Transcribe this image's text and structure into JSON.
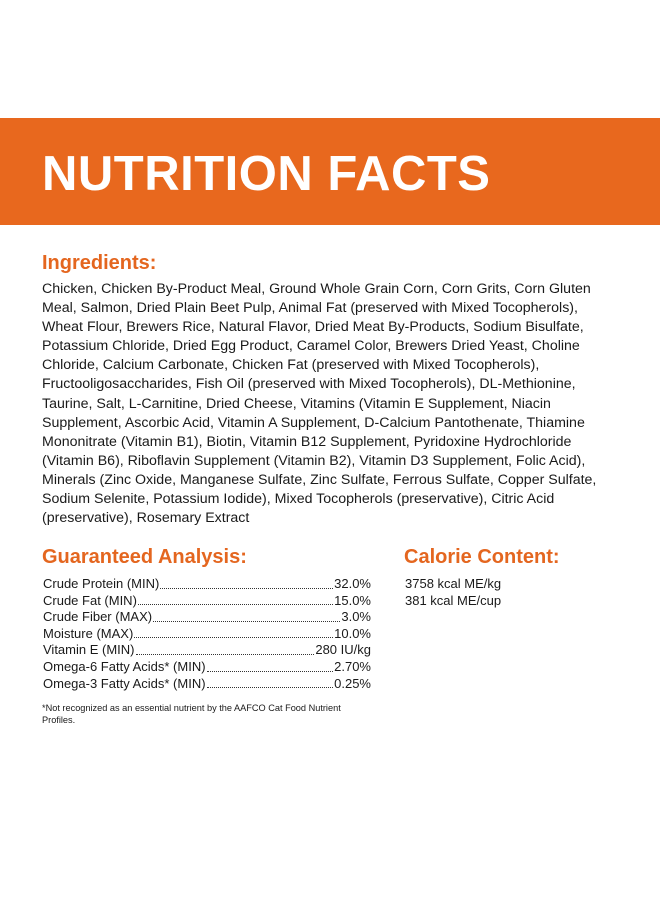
{
  "header": {
    "title": "NUTRITION FACTS"
  },
  "ingredients": {
    "title": "Ingredients:",
    "text": "Chicken, Chicken By-Product Meal, Ground Whole Grain Corn, Corn Grits, Corn Gluten Meal, Salmon, Dried Plain Beet Pulp, Animal Fat (preserved with Mixed Tocopherols), Wheat Flour, Brewers Rice, Natural Flavor, Dried Meat By-Products, Sodium Bisulfate, Potassium Chloride, Dried Egg Product, Caramel Color, Brewers Dried Yeast, Choline Chloride, Calcium Carbonate, Chicken Fat (preserved with Mixed Tocopherols), Fructooligosaccharides, Fish Oil (preserved with Mixed Tocopherols), DL-Methionine, Taurine, Salt, L-Carnitine, Dried Cheese, Vitamins (Vitamin E Supplement, Niacin Supplement, Ascorbic Acid, Vitamin A Supplement, D-Calcium Pantothenate, Thiamine Mononitrate (Vitamin B1), Biotin, Vitamin B12 Supplement, Pyridoxine Hydrochloride (Vitamin B6), Riboflavin Supplement (Vitamin B2), Vitamin D3 Supplement, Folic Acid), Minerals (Zinc Oxide, Manganese Sulfate, Zinc Sulfate, Ferrous Sulfate, Copper Sulfate, Sodium Selenite, Potassium Iodide), Mixed Tocopherols (preservative), Citric Acid (preservative), Rosemary Extract"
  },
  "analysis": {
    "title": "Guaranteed Analysis:",
    "rows": [
      {
        "label": "Crude Protein (MIN)",
        "value": "32.0%"
      },
      {
        "label": "Crude Fat (MIN)",
        "value": "15.0%"
      },
      {
        "label": "Crude Fiber (MAX)",
        "value": "3.0%"
      },
      {
        "label": "Moisture (MAX)",
        "value": "10.0%"
      },
      {
        "label": "Vitamin E (MIN)",
        "value": "280 IU/kg"
      },
      {
        "label": "Omega-6 Fatty Acids* (MIN)",
        "value": "2.70%"
      },
      {
        "label": "Omega-3 Fatty Acids* (MIN)",
        "value": "0.25%"
      }
    ],
    "footnote": "*Not recognized as an essential nutrient by the AAFCO Cat Food Nutrient Profiles."
  },
  "calories": {
    "title": "Calorie Content:",
    "lines": [
      "3758 kcal ME/kg",
      "381 kcal ME/cup"
    ]
  }
}
